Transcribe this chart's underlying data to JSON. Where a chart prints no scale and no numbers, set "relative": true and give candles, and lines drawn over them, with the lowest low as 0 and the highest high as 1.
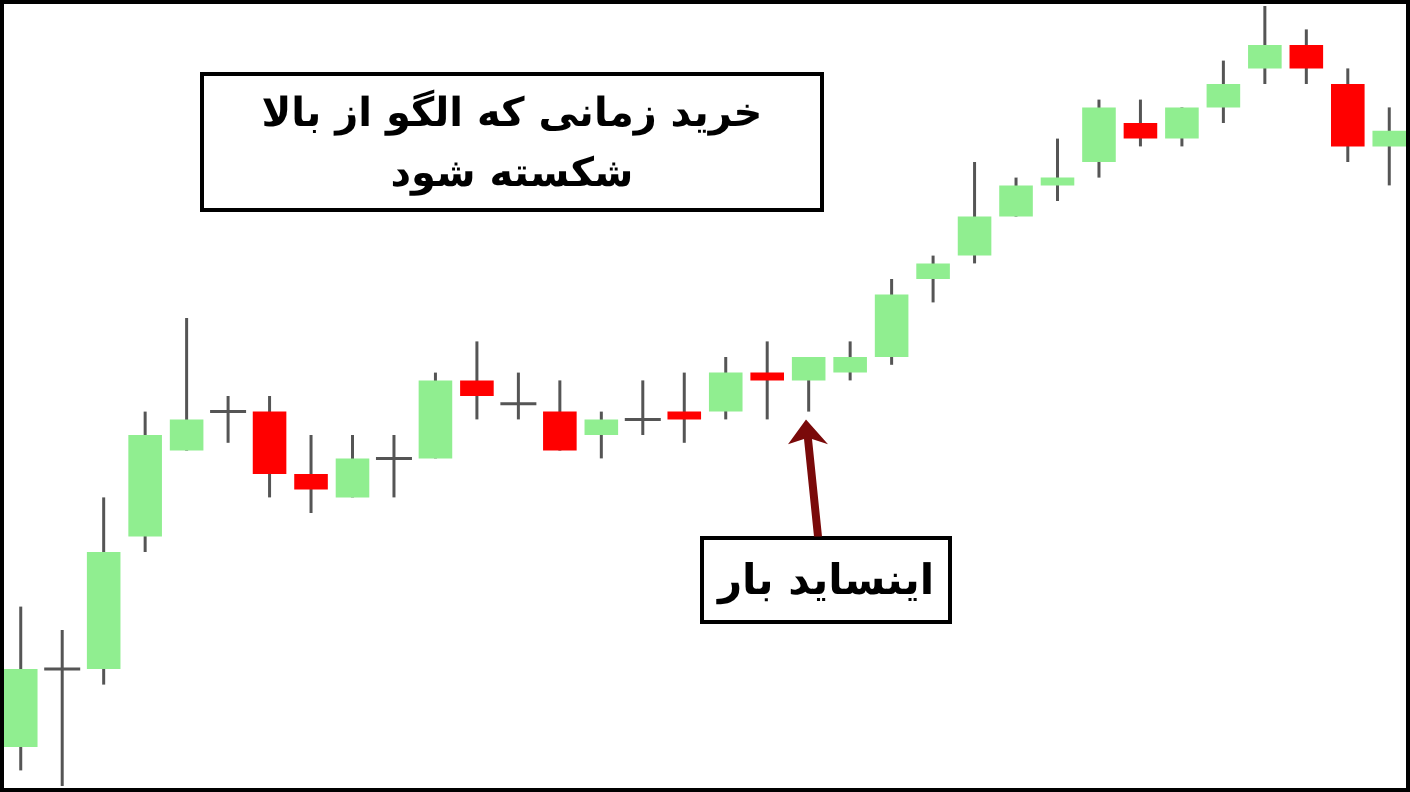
{
  "chart_data": {
    "type": "candlestick",
    "relative": true,
    "categories": [
      null,
      null,
      null,
      null,
      null,
      null,
      null,
      null,
      null,
      null,
      null,
      null,
      null,
      null,
      null,
      null,
      null,
      null,
      null,
      null,
      null,
      null,
      null,
      null,
      null,
      null,
      null,
      null,
      null,
      null,
      null,
      null,
      null,
      null
    ],
    "ohlc": [
      [
        0.05,
        0.23,
        0.02,
        0.15
      ],
      [
        0.15,
        0.2,
        0,
        0.15
      ],
      [
        0.15,
        0.37,
        0.13,
        0.3
      ],
      [
        0.32,
        0.48,
        0.3,
        0.45
      ],
      [
        0.43,
        0.6,
        0.43,
        0.47
      ],
      [
        0.48,
        0.5,
        0.44,
        0.48
      ],
      [
        0.48,
        0.5,
        0.37,
        0.4
      ],
      [
        0.4,
        0.45,
        0.35,
        0.38
      ],
      [
        0.37,
        0.45,
        0.37,
        0.42
      ],
      [
        0.42,
        0.45,
        0.37,
        0.42
      ],
      [
        0.42,
        0.53,
        0.42,
        0.52
      ],
      [
        0.52,
        0.57,
        0.47,
        0.5
      ],
      [
        0.49,
        0.53,
        0.47,
        0.49
      ],
      [
        0.48,
        0.52,
        0.43,
        0.43
      ],
      [
        0.45,
        0.48,
        0.42,
        0.47
      ],
      [
        0.47,
        0.52,
        0.45,
        0.47
      ],
      [
        0.48,
        0.53,
        0.44,
        0.47
      ],
      [
        0.48,
        0.55,
        0.47,
        0.53
      ],
      [
        0.53,
        0.57,
        0.47,
        0.52
      ],
      [
        0.52,
        0.55,
        0.48,
        0.55
      ],
      [
        0.53,
        0.57,
        0.52,
        0.55
      ],
      [
        0.55,
        0.65,
        0.54,
        0.63
      ],
      [
        0.65,
        0.68,
        0.62,
        0.67
      ],
      [
        0.68,
        0.8,
        0.67,
        0.73
      ],
      [
        0.73,
        0.78,
        0.73,
        0.77
      ],
      [
        0.77,
        0.83,
        0.75,
        0.78
      ],
      [
        0.8,
        0.88,
        0.78,
        0.87
      ],
      [
        0.85,
        0.88,
        0.82,
        0.83
      ],
      [
        0.83,
        0.87,
        0.82,
        0.87
      ],
      [
        0.87,
        0.93,
        0.85,
        0.9
      ],
      [
        0.92,
        1,
        0.9,
        0.95
      ],
      [
        0.95,
        0.97,
        0.9,
        0.92
      ],
      [
        0.9,
        0.92,
        0.8,
        0.82
      ],
      [
        0.82,
        0.87,
        0.77,
        0.84
      ]
    ],
    "colors": [
      "#90ee90",
      "#555555",
      "#90ee90",
      "#90ee90",
      "#90ee90",
      "#555555",
      "#ff0000",
      "#ff0000",
      "#90ee90",
      "#555555",
      "#90ee90",
      "#ff0000",
      "#555555",
      "#ff0000",
      "#90ee90",
      "#555555",
      "#ff0000",
      "#90ee90",
      "#ff0000",
      "#90ee90",
      "#90ee90",
      "#90ee90",
      "#90ee90",
      "#90ee90",
      "#90ee90",
      "#90ee90",
      "#90ee90",
      "#ff0000",
      "#90ee90",
      "#90ee90",
      "#90ee90",
      "#ff0000",
      "#ff0000",
      "#90ee90"
    ],
    "annotations": [
      "خرید زمانی که الگو از بالا شکسته شود",
      "اینساید بار"
    ]
  }
}
